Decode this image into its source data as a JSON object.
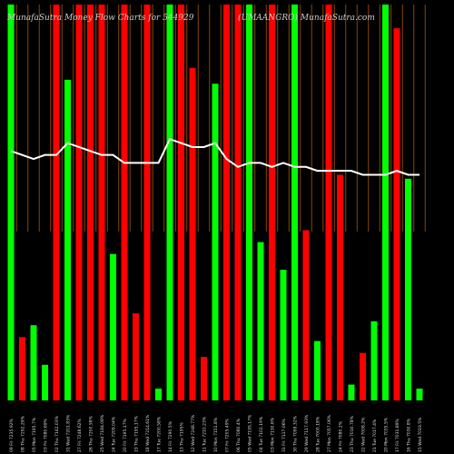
{
  "chart_data": {
    "type": "bar",
    "title": "MunafaSutra Money Flow Charts for 544929",
    "subtitle": "(UMAANGRO) MunafaSutra.com",
    "categories": [
      "09 Fri 7235.92%",
      "08 Thu 7292.29%",
      "05 Mon 7195.7%",
      "03 Fri 7080.69%",
      "02 Thu 7142.03%",
      "31 Wed 7201.83%",
      "27 Fri 7248.62%",
      "26 Thu 7200.58%",
      "25 Wed 7184.08%",
      "24 Tue 7209.04%",
      "20 Fri 7195.17%",
      "19 Thu 7195.17%",
      "18 Wed 7214.61%",
      "17 Tue 7200.58%",
      "14 Fri 7290.5%",
      "13 Thu 7195%",
      "12 Wed 7248.77%",
      "11 Tue 7210.23%",
      "10 Mon 7151.8%",
      "07 Fri 7205.49%",
      "06 Thu 7080.4%",
      "05 Wed 7195.17%",
      "04 Tue 7102.19%",
      "03 Mon 7130.6%",
      "31 Fri 7117.06%",
      "30 Thu 7099.32%",
      "29 Wed 7117.93%",
      "28 Tue 7000.18%",
      "27 Mon 7057.06%",
      "24 Fri 7080.2%",
      "23 Thu 7010.78%",
      "22 Wed 7008.2%",
      "21 Tue 7017.4%",
      "20 Mon 7035.5%",
      "17 Fri 7031.89%",
      "16 Thu 7030.8%",
      "15 Wed 7019.5%"
    ],
    "values": [
      100,
      16,
      19,
      9,
      100,
      81,
      100,
      100,
      100,
      37,
      100,
      22,
      100,
      3,
      100,
      100,
      84,
      11,
      80,
      100,
      100,
      100,
      40,
      100,
      33,
      100,
      43,
      15,
      100,
      57,
      4,
      12,
      20,
      100,
      94,
      56,
      3
    ],
    "colors": [
      "#00ff00",
      "#ff0000",
      "#00ff00",
      "#00ff00",
      "#ff0000",
      "#00ff00",
      "#ff0000",
      "#ff0000",
      "#ff0000",
      "#00ff00",
      "#ff0000",
      "#ff0000",
      "#ff0000",
      "#00ff00",
      "#00ff00",
      "#ff0000",
      "#ff0000",
      "#ff0000",
      "#00ff00",
      "#ff0000",
      "#ff0000",
      "#00ff00",
      "#00ff00",
      "#ff0000",
      "#00ff00",
      "#00ff00",
      "#ff0000",
      "#00ff00",
      "#ff0000",
      "#ff0000",
      "#00ff00",
      "#ff0000",
      "#00ff00",
      "#00ff00",
      "#ff0000",
      "#00ff00",
      "#00ff00"
    ],
    "line": {
      "values": [
        63,
        62,
        61,
        62,
        62,
        65,
        64,
        63,
        62,
        62,
        60,
        60,
        60,
        60,
        66,
        65,
        64,
        64,
        65,
        61,
        59,
        60,
        60,
        59,
        60,
        59,
        59,
        58,
        58,
        58,
        58,
        57,
        57,
        57,
        58,
        57,
        57
      ],
      "color": "#ffffff"
    },
    "ylim": [
      0,
      100
    ]
  }
}
